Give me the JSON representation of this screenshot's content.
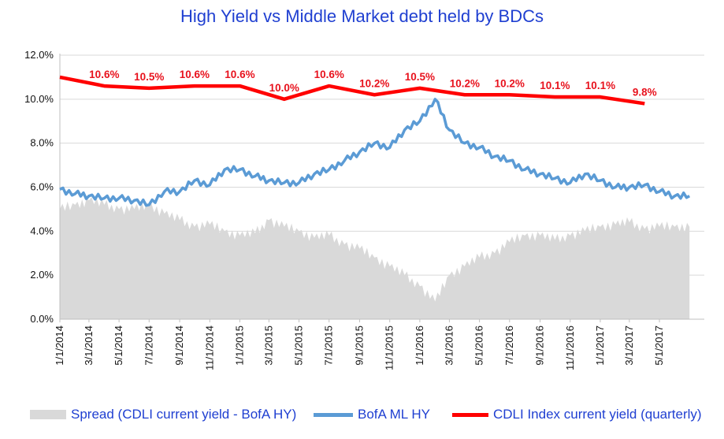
{
  "chart_data": {
    "type": "area",
    "title": "High Yield  vs  Middle Market debt held by BDCs",
    "ylim": [
      0,
      12
    ],
    "yticks": [
      "0.0%",
      "2.0%",
      "4.0%",
      "6.0%",
      "8.0%",
      "10.0%",
      "12.0%"
    ],
    "xticks": [
      "1/1/2014",
      "3/1/2014",
      "5/1/2014",
      "7/1/2014",
      "9/1/2014",
      "11/1/2014",
      "1/1/2015",
      "3/1/2015",
      "5/1/2015",
      "7/1/2015",
      "9/1/2015",
      "11/1/2015",
      "1/1/2016",
      "3/1/2016",
      "5/1/2016",
      "7/1/2016",
      "9/1/2016",
      "11/1/2016",
      "1/1/2017",
      "3/1/2017",
      "5/1/2017"
    ],
    "grid": true,
    "legend_position": "bottom",
    "series": [
      {
        "name": "Spread (CDLI current yield - BofA HY)",
        "kind": "area",
        "color": "#d9d9d9",
        "x": [
          "1/1/2014",
          "2/1/2014",
          "3/1/2014",
          "4/1/2014",
          "5/1/2014",
          "6/1/2014",
          "7/1/2014",
          "8/1/2014",
          "9/1/2014",
          "10/1/2014",
          "11/1/2014",
          "12/1/2014",
          "1/1/2015",
          "2/1/2015",
          "3/1/2015",
          "4/1/2015",
          "5/1/2015",
          "6/1/2015",
          "7/1/2015",
          "8/1/2015",
          "9/1/2015",
          "10/1/2015",
          "11/1/2015",
          "12/1/2015",
          "1/1/2016",
          "2/1/2016",
          "3/1/2016",
          "4/1/2016",
          "5/1/2016",
          "6/1/2016",
          "7/1/2016",
          "8/1/2016",
          "9/1/2016",
          "10/1/2016",
          "11/1/2016",
          "12/1/2016",
          "1/1/2017",
          "2/1/2017",
          "3/1/2017",
          "4/1/2017",
          "5/1/2017",
          "6/1/2017",
          "7/1/2017"
        ],
        "values": [
          5.0,
          5.2,
          5.4,
          5.2,
          5.0,
          5.0,
          5.2,
          4.8,
          4.5,
          4.2,
          4.3,
          4.0,
          3.8,
          3.9,
          4.5,
          4.2,
          4.0,
          3.7,
          3.8,
          3.4,
          3.2,
          2.8,
          2.4,
          2.0,
          1.5,
          0.8,
          2.0,
          2.4,
          2.8,
          3.0,
          3.5,
          3.8,
          3.8,
          3.6,
          3.8,
          4.0,
          4.2,
          4.3,
          4.4,
          4.1,
          4.2,
          4.2,
          4.2
        ]
      },
      {
        "name": "BofA ML HY",
        "kind": "line",
        "color": "#5b9bd5",
        "x": [
          "1/1/2014",
          "2/1/2014",
          "3/1/2014",
          "4/1/2014",
          "5/1/2014",
          "6/1/2014",
          "7/1/2014",
          "8/1/2014",
          "9/1/2014",
          "10/1/2014",
          "11/1/2014",
          "12/1/2014",
          "1/1/2015",
          "2/1/2015",
          "3/1/2015",
          "4/1/2015",
          "5/1/2015",
          "6/1/2015",
          "7/1/2015",
          "8/1/2015",
          "9/1/2015",
          "10/1/2015",
          "11/1/2015",
          "12/1/2015",
          "1/1/2016",
          "2/1/2016",
          "3/1/2016",
          "4/1/2016",
          "5/1/2016",
          "6/1/2016",
          "7/1/2016",
          "8/1/2016",
          "9/1/2016",
          "10/1/2016",
          "11/1/2016",
          "12/1/2016",
          "1/1/2017",
          "2/1/2017",
          "3/1/2017",
          "4/1/2017",
          "5/1/2017",
          "6/1/2017",
          "7/1/2017"
        ],
        "values": [
          5.9,
          5.7,
          5.6,
          5.5,
          5.5,
          5.4,
          5.2,
          5.8,
          5.8,
          6.3,
          6.1,
          6.8,
          6.8,
          6.5,
          6.3,
          6.2,
          6.2,
          6.6,
          6.8,
          7.2,
          7.6,
          8.0,
          7.8,
          8.6,
          9.0,
          10.0,
          8.6,
          8.0,
          7.8,
          7.4,
          7.2,
          6.8,
          6.6,
          6.4,
          6.2,
          6.6,
          6.3,
          6.0,
          6.0,
          6.1,
          5.8,
          5.6,
          5.6
        ]
      },
      {
        "name": "CDLI Index current yield (quarterly)",
        "kind": "line",
        "color": "#ff0000",
        "x": [
          "1/1/2014",
          "4/1/2014",
          "7/1/2014",
          "10/1/2014",
          "1/1/2015",
          "4/1/2015",
          "7/1/2015",
          "10/1/2015",
          "1/1/2016",
          "4/1/2016",
          "7/1/2016",
          "10/1/2016",
          "1/1/2017",
          "4/1/2017"
        ],
        "values": [
          11.0,
          10.6,
          10.5,
          10.6,
          10.6,
          10.0,
          10.6,
          10.2,
          10.5,
          10.2,
          10.2,
          10.1,
          10.1,
          9.8
        ],
        "labels": [
          "",
          "10.6%",
          "10.5%",
          "10.6%",
          "10.6%",
          "10.0%",
          "10.6%",
          "10.2%",
          "10.5%",
          "10.2%",
          "10.2%",
          "10.1%",
          "10.1%",
          "9.8%"
        ]
      }
    ]
  },
  "legend": {
    "items": [
      {
        "label": "Spread (CDLI current yield - BofA HY)",
        "color": "#d9d9d9"
      },
      {
        "label": "BofA ML HY",
        "color": "#5b9bd5"
      },
      {
        "label": "CDLI Index current yield (quarterly)",
        "color": "#ff0000"
      }
    ]
  }
}
